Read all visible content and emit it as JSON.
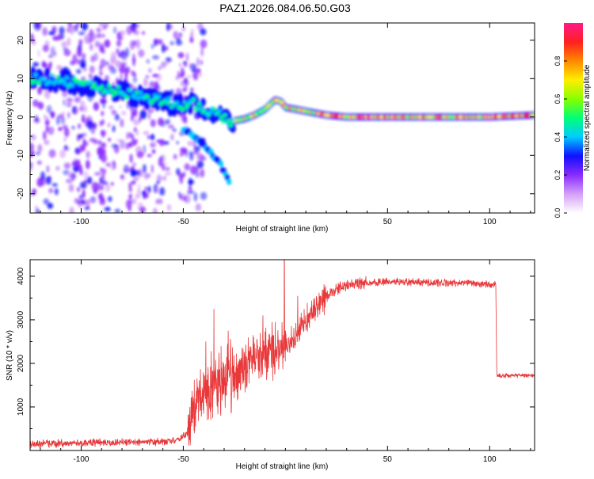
{
  "title": "PAZ1.2026.084.06.50.G03",
  "colors": {
    "snr_line": "#e8383a",
    "axis": "#000000",
    "background": "#ffffff"
  },
  "chart_data": [
    {
      "type": "heatmap",
      "name": "spectrogram",
      "title": "PAZ1.2026.084.06.50.G03",
      "xlabel": "Height of straight line (km)",
      "ylabel": "Frequency (Hz)",
      "xlim": [
        -125,
        122
      ],
      "ylim": [
        -25,
        24.5
      ],
      "xticks": [
        -100,
        -50,
        50,
        100
      ],
      "yticks": [
        -20,
        -10,
        0,
        10,
        20
      ],
      "grid": false,
      "ridge": {
        "x": [
          -125,
          -110,
          -100,
          -90,
          -80,
          -70,
          -60,
          -50,
          -45,
          -40,
          -35,
          -30,
          -28,
          -25,
          -20,
          -15,
          -10,
          -5,
          -2,
          0,
          5,
          10,
          20,
          30,
          50,
          70,
          100,
          122
        ],
        "freq": [
          10,
          9.5,
          8.5,
          7.5,
          6.5,
          5,
          4,
          3,
          3.5,
          2,
          1,
          0,
          -1,
          -1,
          -0.5,
          0.5,
          2,
          4.5,
          4,
          2.5,
          2,
          1.5,
          0.5,
          0,
          0,
          0,
          0,
          0.5
        ]
      },
      "branch": {
        "x": [
          -50,
          -45,
          -40,
          -35,
          -30,
          -27
        ],
        "freq": [
          -3,
          -5,
          -7,
          -10,
          -14,
          -18
        ]
      },
      "noise_region_x": [
        -125,
        -40
      ]
    },
    {
      "type": "colorbar",
      "name": "amplitude-colorbar",
      "label": "Normalized spectral amplitude",
      "range": [
        0,
        1
      ],
      "ticks": [
        "0.0",
        "0.2",
        "0.4",
        "0.6",
        "0.8"
      ],
      "colormap": [
        "#ffffff",
        "#d59ff8",
        "#8a2bff",
        "#1010ff",
        "#00ccff",
        "#00ff77",
        "#88ff00",
        "#ffee00",
        "#ff8800",
        "#ff2020",
        "#ff1a8a"
      ]
    },
    {
      "type": "line",
      "name": "snr",
      "xlabel": "Height of straight line (km)",
      "ylabel": "SNR (10 * v/v)",
      "xlim": [
        -125,
        122
      ],
      "ylim": [
        0,
        4380
      ],
      "xticks": [
        -100,
        -50,
        50,
        100
      ],
      "yticks": [
        1000,
        2000,
        3000,
        4000
      ],
      "grid": false,
      "envelope": {
        "x": [
          -125,
          -100,
          -80,
          -60,
          -52,
          -48,
          -45,
          -40,
          -35,
          -30,
          -25,
          -20,
          -15,
          -10,
          -5,
          0,
          5,
          10,
          15,
          20,
          25,
          30,
          40,
          50,
          60,
          70,
          80,
          90,
          100,
          103,
          103.5,
          110,
          122
        ],
        "y": [
          150,
          170,
          180,
          200,
          250,
          400,
          1000,
          1400,
          1500,
          1700,
          1700,
          1950,
          2100,
          2200,
          2300,
          2400,
          2600,
          2950,
          3300,
          3550,
          3700,
          3800,
          3850,
          3870,
          3870,
          3860,
          3850,
          3840,
          3820,
          3810,
          1720,
          1720,
          1720
        ]
      },
      "spikes": [
        {
          "x": -39,
          "y": 2500
        },
        {
          "x": -35,
          "y": 3250
        },
        {
          "x": -28,
          "y": 2750
        },
        {
          "x": -11,
          "y": 3100
        },
        {
          "x": -0.5,
          "y": 4380
        },
        {
          "x": 6,
          "y": 3550
        },
        {
          "x": -5,
          "y": 2950
        }
      ],
      "noise": {
        "segments": [
          {
            "from": -125,
            "to": -48,
            "amp": 90
          },
          {
            "from": -48,
            "to": -40,
            "amp": 600
          },
          {
            "from": -40,
            "to": -25,
            "amp": 800
          },
          {
            "from": -25,
            "to": 0,
            "amp": 600
          },
          {
            "from": 0,
            "to": 20,
            "amp": 350
          },
          {
            "from": 20,
            "to": 40,
            "amp": 150
          },
          {
            "from": 40,
            "to": 103,
            "amp": 90
          },
          {
            "from": 103,
            "to": 122,
            "amp": 50
          }
        ]
      }
    }
  ]
}
